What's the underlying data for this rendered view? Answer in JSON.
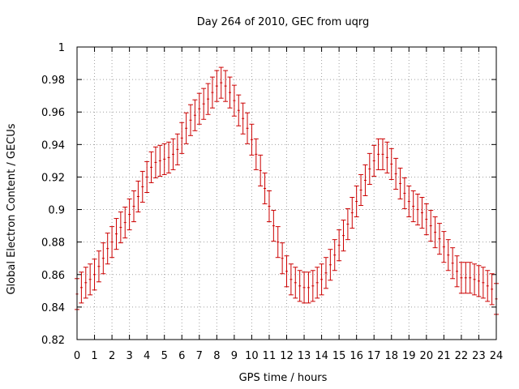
{
  "chart_data": {
    "type": "scatter",
    "title": "Day 264 of 2010, GEC from uqrg",
    "xlabel": "GPS time / hours",
    "ylabel": "Global Electron Content / GECUs",
    "xlim": [
      0,
      24
    ],
    "ylim": [
      0.82,
      1.0
    ],
    "grid": true,
    "legend": "none",
    "x_ticks": [
      "0",
      "1",
      "2",
      "3",
      "4",
      "5",
      "6",
      "7",
      "8",
      "9",
      "10",
      "11",
      "12",
      "13",
      "14",
      "15",
      "16",
      "17",
      "18",
      "19",
      "20",
      "21",
      "22",
      "23",
      "24"
    ],
    "y_ticks": [
      "0.82",
      "0.84",
      "0.86",
      "0.88",
      "0.9",
      "0.92",
      "0.94",
      "0.96",
      "0.98",
      "1"
    ],
    "error": 0.0095,
    "series": [
      {
        "color": "#cc0000",
        "x": [
          0,
          0.25,
          0.5,
          0.75,
          1,
          1.25,
          1.5,
          1.75,
          2,
          2.25,
          2.5,
          2.75,
          3,
          3.25,
          3.5,
          3.75,
          4,
          4.25,
          4.5,
          4.75,
          5,
          5.25,
          5.5,
          5.75,
          6,
          6.25,
          6.5,
          6.75,
          7,
          7.25,
          7.5,
          7.75,
          8,
          8.25,
          8.5,
          8.75,
          9,
          9.25,
          9.5,
          9.75,
          10,
          10.25,
          10.5,
          10.75,
          11,
          11.25,
          11.5,
          11.75,
          12,
          12.25,
          12.5,
          12.75,
          13,
          13.25,
          13.5,
          13.75,
          14,
          14.25,
          14.5,
          14.75,
          15,
          15.25,
          15.5,
          15.75,
          16,
          16.25,
          16.5,
          16.75,
          17,
          17.25,
          17.5,
          17.75,
          18,
          18.25,
          18.5,
          18.75,
          19,
          19.25,
          19.5,
          19.75,
          20,
          20.25,
          20.5,
          20.75,
          21,
          21.25,
          21.5,
          21.75,
          22,
          22.25,
          22.5,
          22.75,
          23,
          23.25,
          23.5,
          23.75,
          24
        ],
        "y": [
          0.848,
          0.852,
          0.855,
          0.857,
          0.86,
          0.865,
          0.87,
          0.876,
          0.88,
          0.885,
          0.889,
          0.892,
          0.897,
          0.902,
          0.908,
          0.914,
          0.92,
          0.926,
          0.929,
          0.93,
          0.931,
          0.932,
          0.934,
          0.937,
          0.944,
          0.95,
          0.955,
          0.958,
          0.962,
          0.965,
          0.968,
          0.972,
          0.976,
          0.978,
          0.976,
          0.972,
          0.967,
          0.961,
          0.956,
          0.95,
          0.943,
          0.934,
          0.924,
          0.913,
          0.902,
          0.89,
          0.88,
          0.87,
          0.862,
          0.857,
          0.855,
          0.853,
          0.852,
          0.852,
          0.853,
          0.855,
          0.857,
          0.861,
          0.866,
          0.872,
          0.878,
          0.884,
          0.891,
          0.898,
          0.905,
          0.912,
          0.918,
          0.925,
          0.93,
          0.934,
          0.934,
          0.932,
          0.928,
          0.922,
          0.916,
          0.91,
          0.905,
          0.902,
          0.9,
          0.898,
          0.894,
          0.89,
          0.886,
          0.882,
          0.877,
          0.872,
          0.867,
          0.862,
          0.858,
          0.858,
          0.858,
          0.857,
          0.856,
          0.855,
          0.853,
          0.851,
          0.845
        ]
      }
    ]
  }
}
